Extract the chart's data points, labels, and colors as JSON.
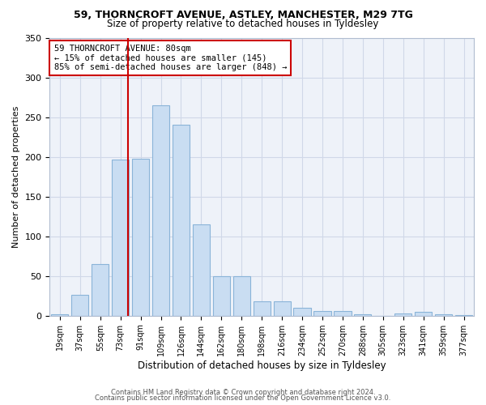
{
  "title": "59, THORNCROFT AVENUE, ASTLEY, MANCHESTER, M29 7TG",
  "subtitle": "Size of property relative to detached houses in Tyldesley",
  "xlabel": "Distribution of detached houses by size in Tyldesley",
  "ylabel": "Number of detached properties",
  "bar_color": "#c9ddf2",
  "bar_edge_color": "#8ab4d8",
  "grid_color": "#d0d8e8",
  "background_color": "#eef2f9",
  "vline_x": 3.5,
  "vline_color": "#cc0000",
  "annotation_text": "59 THORNCROFT AVENUE: 80sqm\n← 15% of detached houses are smaller (145)\n85% of semi-detached houses are larger (848) →",
  "annotation_box_color": "white",
  "annotation_box_edge": "#cc0000",
  "categories": [
    "19sqm",
    "37sqm",
    "55sqm",
    "73sqm",
    "91sqm",
    "109sqm",
    "126sqm",
    "144sqm",
    "162sqm",
    "180sqm",
    "198sqm",
    "216sqm",
    "234sqm",
    "252sqm",
    "270sqm",
    "288sqm",
    "305sqm",
    "323sqm",
    "341sqm",
    "359sqm",
    "377sqm"
  ],
  "counts": [
    2,
    26,
    65,
    197,
    198,
    265,
    240,
    115,
    50,
    50,
    18,
    18,
    10,
    6,
    6,
    2,
    0,
    3,
    5,
    2,
    1
  ],
  "ylim": [
    0,
    350
  ],
  "yticks": [
    0,
    50,
    100,
    150,
    200,
    250,
    300,
    350
  ],
  "footer_line1": "Contains HM Land Registry data © Crown copyright and database right 2024.",
  "footer_line2": "Contains public sector information licensed under the Open Government Licence v3.0."
}
